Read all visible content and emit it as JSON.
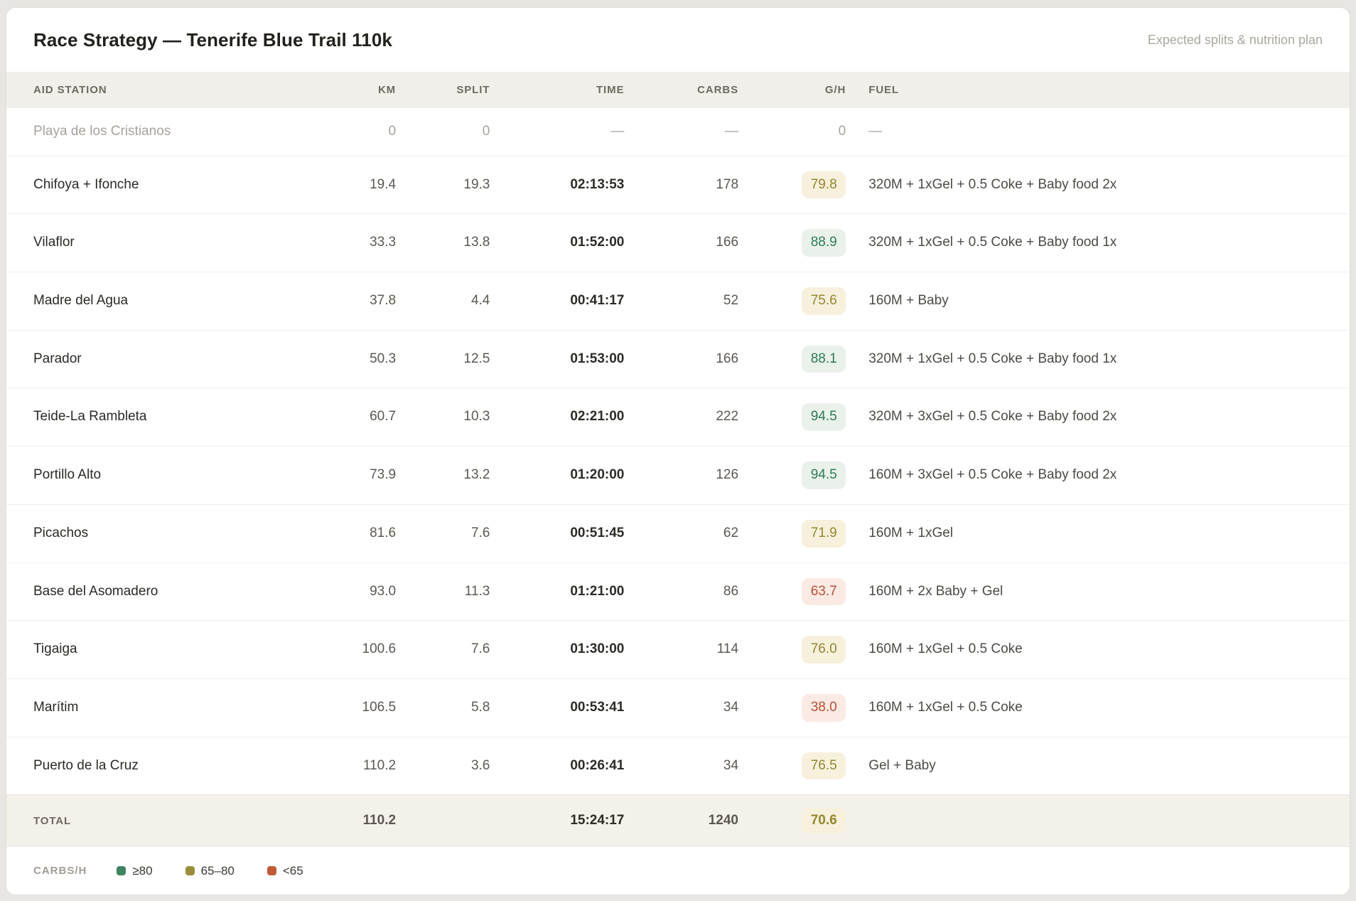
{
  "chart_data": {
    "type": "table",
    "title": "Race Strategy — Tenerife Blue Trail 110k",
    "subtitle": "Expected splits & nutrition plan",
    "columns": [
      "AID STATION",
      "KM",
      "SPLIT",
      "TIME",
      "CARBS",
      "G/H",
      "FUEL"
    ],
    "rows": [
      {
        "station": "Playa de los Cristianos",
        "km": "0",
        "split": "0",
        "time": "—",
        "carbs": "—",
        "gh": "0",
        "gh_level": "none",
        "fuel": "—",
        "muted": true
      },
      {
        "station": "Chifoya + Ifonche",
        "km": "19.4",
        "split": "19.3",
        "time": "02:13:53",
        "carbs": "178",
        "gh": "79.8",
        "gh_level": "yellow",
        "fuel": "320M + 1xGel + 0.5 Coke + Baby food 2x",
        "muted": false
      },
      {
        "station": "Vilaflor",
        "km": "33.3",
        "split": "13.8",
        "time": "01:52:00",
        "carbs": "166",
        "gh": "88.9",
        "gh_level": "green",
        "fuel": "320M + 1xGel + 0.5 Coke + Baby food 1x",
        "muted": false
      },
      {
        "station": "Madre del Agua",
        "km": "37.8",
        "split": "4.4",
        "time": "00:41:17",
        "carbs": "52",
        "gh": "75.6",
        "gh_level": "yellow",
        "fuel": "160M + Baby",
        "muted": false
      },
      {
        "station": "Parador",
        "km": "50.3",
        "split": "12.5",
        "time": "01:53:00",
        "carbs": "166",
        "gh": "88.1",
        "gh_level": "green",
        "fuel": "320M + 1xGel + 0.5 Coke + Baby food 1x",
        "muted": false
      },
      {
        "station": "Teide-La Rambleta",
        "km": "60.7",
        "split": "10.3",
        "time": "02:21:00",
        "carbs": "222",
        "gh": "94.5",
        "gh_level": "green",
        "fuel": "320M + 3xGel + 0.5 Coke + Baby food 2x",
        "muted": false
      },
      {
        "station": "Portillo Alto",
        "km": "73.9",
        "split": "13.2",
        "time": "01:20:00",
        "carbs": "126",
        "gh": "94.5",
        "gh_level": "green",
        "fuel": "160M + 3xGel + 0.5 Coke + Baby food 2x",
        "muted": false
      },
      {
        "station": "Picachos",
        "km": "81.6",
        "split": "7.6",
        "time": "00:51:45",
        "carbs": "62",
        "gh": "71.9",
        "gh_level": "yellow",
        "fuel": "160M + 1xGel",
        "muted": false
      },
      {
        "station": "Base del Asomadero",
        "km": "93.0",
        "split": "11.3",
        "time": "01:21:00",
        "carbs": "86",
        "gh": "63.7",
        "gh_level": "red",
        "fuel": "160M + 2x Baby + Gel",
        "muted": false
      },
      {
        "station": "Tigaiga",
        "km": "100.6",
        "split": "7.6",
        "time": "01:30:00",
        "carbs": "114",
        "gh": "76.0",
        "gh_level": "yellow",
        "fuel": "160M + 1xGel + 0.5 Coke",
        "muted": false
      },
      {
        "station": "Marítim",
        "km": "106.5",
        "split": "5.8",
        "time": "00:53:41",
        "carbs": "34",
        "gh": "38.0",
        "gh_level": "red",
        "fuel": "160M + 1xGel + 0.5 Coke",
        "muted": false
      },
      {
        "station": "Puerto de la Cruz",
        "km": "110.2",
        "split": "3.6",
        "time": "00:26:41",
        "carbs": "34",
        "gh": "76.5",
        "gh_level": "yellow",
        "fuel": "Gel + Baby",
        "muted": false
      }
    ],
    "total": {
      "label": "TOTAL",
      "km": "110.2",
      "split": "",
      "time": "15:24:17",
      "carbs": "1240",
      "gh": "70.6",
      "gh_level": "yellow",
      "fuel": ""
    },
    "legend": {
      "label": "CARBS/H",
      "items": [
        {
          "label": "≥80",
          "level": "green",
          "color": "#3c8560"
        },
        {
          "label": "65–80",
          "level": "yellow",
          "color": "#9a8e3a"
        },
        {
          "label": "<65",
          "level": "red",
          "color": "#c05a38"
        }
      ]
    }
  },
  "colors": {
    "page_background": "#e8e6e2",
    "card_background": "#ffffff",
    "header_band": "#f1efe9",
    "total_band": "#f4f1ea",
    "badge_green_bg": "#e9f1ea",
    "badge_green_text": "#2e7a57",
    "badge_yellow_bg": "#f6f0dc",
    "badge_yellow_text": "#95862f",
    "badge_red_bg": "#fbe9e3",
    "badge_red_text": "#b55137"
  }
}
